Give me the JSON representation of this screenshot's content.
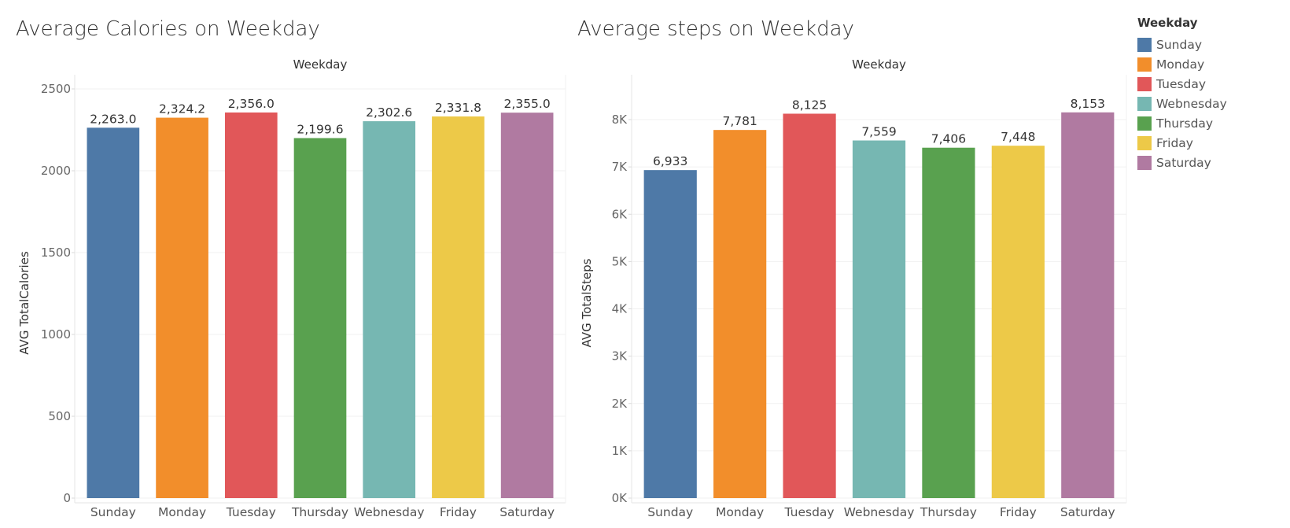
{
  "chart_data": [
    {
      "type": "bar",
      "title": "Average Calories on Weekday",
      "column_header": "Weekday",
      "ylabel": "AVG TotalCalories",
      "categories": [
        "Sunday",
        "Monday",
        "Tuesday",
        "Thursday",
        "Webnesday",
        "Friday",
        "Saturday"
      ],
      "values": [
        2263.0,
        2324.2,
        2356.0,
        2199.6,
        2302.6,
        2331.8,
        2355.0
      ],
      "value_labels": [
        "2,263.0",
        "2,324.2",
        "2,356.0",
        "2,199.6",
        "2,302.6",
        "2,331.8",
        "2,355.0"
      ],
      "ylim": [
        0,
        2500
      ],
      "yticks": [
        0,
        500,
        1000,
        1500,
        2000,
        2500
      ],
      "ytick_labels": [
        "0",
        "500",
        "1000",
        "1500",
        "2000",
        "2500"
      ],
      "grid": true
    },
    {
      "type": "bar",
      "title": "Average steps on Weekday",
      "column_header": "Weekday",
      "ylabel": "AVG TotalSteps",
      "categories": [
        "Sunday",
        "Monday",
        "Tuesday",
        "Webnesday",
        "Thursday",
        "Friday",
        "Saturday"
      ],
      "values": [
        6933,
        7781,
        8125,
        7559,
        7406,
        7448,
        8153
      ],
      "value_labels": [
        "6,933",
        "7,781",
        "8,125",
        "7,559",
        "7,406",
        "7,448",
        "8,153"
      ],
      "ylim": [
        0,
        8000
      ],
      "yticks": [
        0,
        1000,
        2000,
        3000,
        4000,
        5000,
        6000,
        7000,
        8000
      ],
      "ytick_labels": [
        "0K",
        "1K",
        "2K",
        "3K",
        "4K",
        "5K",
        "6K",
        "7K",
        "8K"
      ],
      "grid": true
    }
  ],
  "legend": {
    "title": "Weekday",
    "placement": "top-right",
    "items": [
      {
        "label": "Sunday",
        "color": "#4e79a7"
      },
      {
        "label": "Monday",
        "color": "#f28e2b"
      },
      {
        "label": "Tuesday",
        "color": "#e15759"
      },
      {
        "label": "Webnesday",
        "color": "#76b7b2"
      },
      {
        "label": "Thursday",
        "color": "#59a14f"
      },
      {
        "label": "Friday",
        "color": "#edc948"
      },
      {
        "label": "Saturday",
        "color": "#b07aa1"
      }
    ]
  }
}
